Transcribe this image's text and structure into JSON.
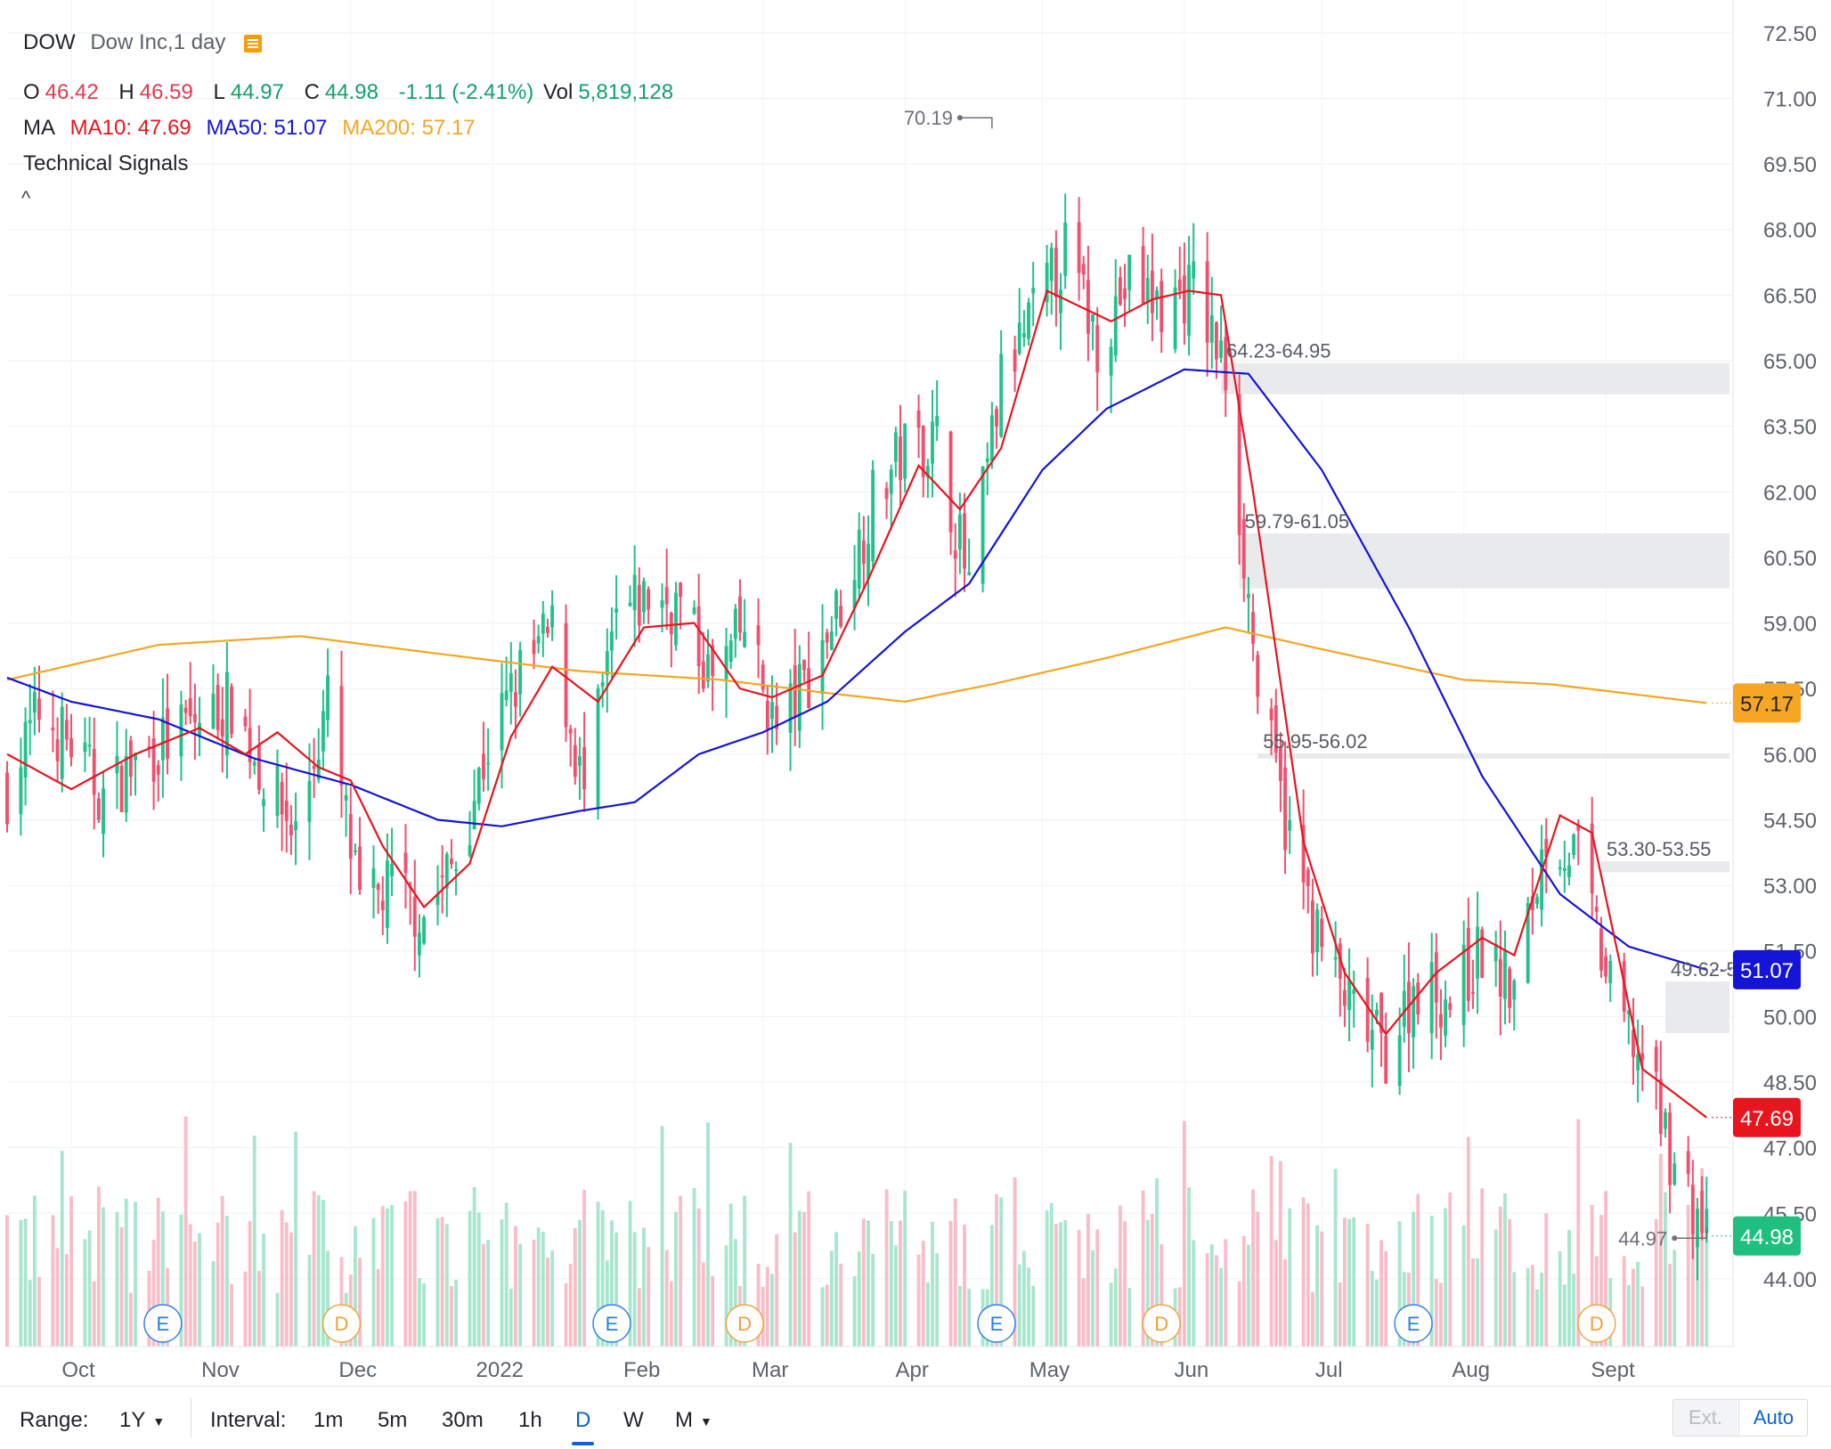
{
  "header": {
    "symbol": "DOW",
    "name": "Dow Inc,1 day",
    "ohlc": {
      "o_label": "O",
      "o_value": "46.42",
      "h_label": "H",
      "h_value": "46.59",
      "l_label": "L",
      "l_value": "44.97",
      "c_label": "C",
      "c_value": "44.98",
      "change": "-1.11 (-2.41%)",
      "vol_label": "Vol",
      "vol_value": "5,819,128"
    },
    "ma": {
      "label": "MA",
      "ma10": "MA10: 47.69",
      "ma50": "MA50: 51.07",
      "ma200": "MA200: 57.17"
    },
    "technical_signals": "Technical Signals",
    "collapse": "^"
  },
  "colors": {
    "up": "#22c08a",
    "down": "#f0506e",
    "ma10": "#e8141e",
    "ma50": "#1414d8",
    "ma200": "#f5a623",
    "vol_up": "#9fe3c8",
    "vol_down": "#f7b6c3",
    "zone": "#e9eaec",
    "last_price": "#1fbf7f"
  },
  "bottom_bar": {
    "range_label": "Range:",
    "range_value": "1Y",
    "interval_label": "Interval:",
    "intervals": [
      "1m",
      "5m",
      "30m",
      "1h",
      "D",
      "W",
      "M"
    ],
    "active_interval": "D",
    "ext": "Ext.",
    "auto": "Auto"
  },
  "chart_data": {
    "type": "candlestick",
    "title": "",
    "y_ticks": [
      "72.50",
      "71.00",
      "69.50",
      "68.00",
      "66.50",
      "65.00",
      "63.50",
      "62.00",
      "60.50",
      "59.00",
      "57.50",
      "56.00",
      "54.50",
      "53.00",
      "51.50",
      "50.00",
      "48.50",
      "47.00",
      "45.50",
      "44.00"
    ],
    "ylim": [
      42.45,
      73.25
    ],
    "x_ticks": [
      {
        "label": "Oct",
        "date": "2021-10-01"
      },
      {
        "label": "Nov",
        "date": "2021-11-01"
      },
      {
        "label": "Dec",
        "date": "2021-12-01"
      },
      {
        "label": "2022",
        "date": "2022-01-01"
      },
      {
        "label": "Feb",
        "date": "2022-02-01"
      },
      {
        "label": "Mar",
        "date": "2022-03-01"
      },
      {
        "label": "Apr",
        "date": "2022-04-01"
      },
      {
        "label": "May",
        "date": "2022-05-01"
      },
      {
        "label": "Jun",
        "date": "2022-06-01"
      },
      {
        "label": "Jul",
        "date": "2022-07-01"
      },
      {
        "label": "Aug",
        "date": "2022-08-01"
      },
      {
        "label": "Sept",
        "date": "2022-09-01"
      }
    ],
    "xlim": [
      "2021-09-17",
      "2022-09-28"
    ],
    "price_path": [
      [
        "2021-09-17",
        55.2
      ],
      [
        "2021-09-24",
        57.0
      ],
      [
        "2021-10-01",
        56.2
      ],
      [
        "2021-10-08",
        55.0
      ],
      [
        "2021-10-15",
        55.8
      ],
      [
        "2021-10-22",
        56.3
      ],
      [
        "2021-10-29",
        56.8
      ],
      [
        "2021-11-05",
        57.2
      ],
      [
        "2021-11-12",
        55.5
      ],
      [
        "2021-11-19",
        54.2
      ],
      [
        "2021-11-26",
        57.2
      ],
      [
        "2021-12-03",
        52.4
      ],
      [
        "2021-12-10",
        53.0
      ],
      [
        "2021-12-17",
        52.3
      ],
      [
        "2021-12-24",
        53.6
      ],
      [
        "2021-12-31",
        56.2
      ],
      [
        "2022-01-07",
        57.8
      ],
      [
        "2022-01-14",
        58.8
      ],
      [
        "2022-01-21",
        55.0
      ],
      [
        "2022-01-28",
        59.0
      ],
      [
        "2022-02-04",
        59.6
      ],
      [
        "2022-02-11",
        59.4
      ],
      [
        "2022-02-18",
        57.6
      ],
      [
        "2022-02-25",
        58.9
      ],
      [
        "2022-03-04",
        56.5
      ],
      [
        "2022-03-11",
        57.8
      ],
      [
        "2022-03-18",
        59.5
      ],
      [
        "2022-03-25",
        61.8
      ],
      [
        "2022-04-01",
        63.0
      ],
      [
        "2022-04-08",
        63.2
      ],
      [
        "2022-04-15",
        59.8
      ],
      [
        "2022-04-22",
        64.5
      ],
      [
        "2022-04-29",
        66.0
      ],
      [
        "2022-05-06",
        67.5
      ],
      [
        "2022-05-13",
        65.5
      ],
      [
        "2022-05-20",
        66.8
      ],
      [
        "2022-05-27",
        66.2
      ],
      [
        "2022-06-03",
        66.7
      ],
      [
        "2022-06-10",
        64.7
      ],
      [
        "2022-06-17",
        57.5
      ],
      [
        "2022-06-24",
        54.0
      ],
      [
        "2022-07-01",
        51.5
      ],
      [
        "2022-07-08",
        50.0
      ],
      [
        "2022-07-15",
        49.2
      ],
      [
        "2022-07-22",
        50.8
      ],
      [
        "2022-07-29",
        50.4
      ],
      [
        "2022-08-05",
        51.5
      ],
      [
        "2022-08-12",
        50.5
      ],
      [
        "2022-08-19",
        54.2
      ],
      [
        "2022-08-26",
        53.6
      ],
      [
        "2022-09-02",
        50.5
      ],
      [
        "2022-09-09",
        49.0
      ],
      [
        "2022-09-16",
        46.6
      ],
      [
        "2022-09-23",
        44.98
      ]
    ],
    "ma10_path": [
      [
        "2021-09-17",
        56.0
      ],
      [
        "2021-09-24",
        55.6
      ],
      [
        "2021-10-01",
        55.2
      ],
      [
        "2021-10-15",
        56.0
      ],
      [
        "2021-10-29",
        56.6
      ],
      [
        "2021-11-08",
        56.0
      ],
      [
        "2021-11-15",
        56.5
      ],
      [
        "2021-11-24",
        55.7
      ],
      [
        "2021-12-01",
        55.4
      ],
      [
        "2021-12-08",
        53.9
      ],
      [
        "2021-12-17",
        52.5
      ],
      [
        "2021-12-27",
        53.5
      ],
      [
        "2022-01-05",
        56.4
      ],
      [
        "2022-01-14",
        58.0
      ],
      [
        "2022-01-24",
        57.2
      ],
      [
        "2022-02-03",
        58.9
      ],
      [
        "2022-02-14",
        59.0
      ],
      [
        "2022-02-24",
        57.5
      ],
      [
        "2022-03-03",
        57.3
      ],
      [
        "2022-03-14",
        57.8
      ],
      [
        "2022-03-24",
        60.0
      ],
      [
        "2022-04-04",
        62.6
      ],
      [
        "2022-04-13",
        61.6
      ],
      [
        "2022-04-22",
        63.0
      ],
      [
        "2022-05-02",
        66.6
      ],
      [
        "2022-05-16",
        65.9
      ],
      [
        "2022-05-25",
        66.4
      ],
      [
        "2022-06-02",
        66.6
      ],
      [
        "2022-06-09",
        66.5
      ],
      [
        "2022-06-16",
        62.0
      ],
      [
        "2022-06-27",
        54.0
      ],
      [
        "2022-07-06",
        51.0
      ],
      [
        "2022-07-15",
        49.6
      ],
      [
        "2022-07-26",
        51.0
      ],
      [
        "2022-08-05",
        51.8
      ],
      [
        "2022-08-12",
        51.4
      ],
      [
        "2022-08-22",
        54.6
      ],
      [
        "2022-08-29",
        54.2
      ],
      [
        "2022-09-09",
        48.8
      ],
      [
        "2022-09-23",
        47.69
      ]
    ],
    "ma50_path": [
      [
        "2021-09-17",
        57.75
      ],
      [
        "2021-10-01",
        57.2
      ],
      [
        "2021-10-20",
        56.8
      ],
      [
        "2021-11-10",
        55.9
      ],
      [
        "2021-12-01",
        55.3
      ],
      [
        "2021-12-20",
        54.5
      ],
      [
        "2022-01-03",
        54.35
      ],
      [
        "2022-01-20",
        54.7
      ],
      [
        "2022-02-01",
        54.9
      ],
      [
        "2022-02-15",
        56.0
      ],
      [
        "2022-03-01",
        56.5
      ],
      [
        "2022-03-15",
        57.2
      ],
      [
        "2022-04-01",
        58.8
      ],
      [
        "2022-04-15",
        59.9
      ],
      [
        "2022-05-01",
        62.5
      ],
      [
        "2022-05-15",
        63.9
      ],
      [
        "2022-06-01",
        64.8
      ],
      [
        "2022-06-15",
        64.7
      ],
      [
        "2022-07-01",
        62.5
      ],
      [
        "2022-07-20",
        58.9
      ],
      [
        "2022-08-05",
        55.5
      ],
      [
        "2022-08-22",
        52.8
      ],
      [
        "2022-09-06",
        51.6
      ],
      [
        "2022-09-23",
        51.07
      ]
    ],
    "ma200_path": [
      [
        "2021-09-17",
        57.7
      ],
      [
        "2021-10-20",
        58.5
      ],
      [
        "2021-11-20",
        58.7
      ],
      [
        "2021-12-20",
        58.3
      ],
      [
        "2022-01-20",
        57.9
      ],
      [
        "2022-02-20",
        57.7
      ],
      [
        "2022-03-15",
        57.4
      ],
      [
        "2022-04-01",
        57.2
      ],
      [
        "2022-04-20",
        57.6
      ],
      [
        "2022-05-15",
        58.2
      ],
      [
        "2022-06-10",
        58.9
      ],
      [
        "2022-07-01",
        58.4
      ],
      [
        "2022-08-01",
        57.7
      ],
      [
        "2022-08-20",
        57.6
      ],
      [
        "2022-09-23",
        57.17
      ]
    ],
    "volume_bars": 252,
    "price_labels": [
      {
        "text": "57.17",
        "value": 57.17,
        "series": "MA200"
      },
      {
        "text": "51.07",
        "value": 51.07,
        "series": "MA50"
      },
      {
        "text": "47.69",
        "value": 47.69,
        "series": "MA10"
      },
      {
        "text": "44.98",
        "value": 44.98,
        "series": "Last"
      }
    ],
    "annotations": [
      {
        "text": "70.19",
        "date": "2022-04-20",
        "value": 70.19,
        "kind": "high"
      },
      {
        "text": "44.97",
        "date": "2022-09-23",
        "value": 44.97,
        "kind": "low"
      },
      {
        "text": "64.23-64.95",
        "date": "2022-06-09",
        "low": 64.23,
        "high": 64.95,
        "kind": "gap"
      },
      {
        "text": "59.79-61.05",
        "date": "2022-06-13",
        "low": 59.79,
        "high": 61.05,
        "kind": "gap"
      },
      {
        "text": "55.95-56.02",
        "date": "2022-06-17",
        "low": 55.95,
        "high": 56.02,
        "kind": "gap"
      },
      {
        "text": "53.30-53.55",
        "date": "2022-08-31",
        "low": 53.3,
        "high": 53.55,
        "kind": "gap"
      },
      {
        "text": "49.62-5",
        "date": "2022-09-14",
        "low": 49.62,
        "high": 50.8,
        "kind": "gap"
      }
    ],
    "events": [
      {
        "text": "E",
        "date": "2021-10-21"
      },
      {
        "text": "D",
        "date": "2021-11-29"
      },
      {
        "text": "E",
        "date": "2022-01-27"
      },
      {
        "text": "D",
        "date": "2022-02-25"
      },
      {
        "text": "E",
        "date": "2022-04-21"
      },
      {
        "text": "D",
        "date": "2022-05-27"
      },
      {
        "text": "E",
        "date": "2022-07-21"
      },
      {
        "text": "D",
        "date": "2022-08-30"
      }
    ]
  }
}
